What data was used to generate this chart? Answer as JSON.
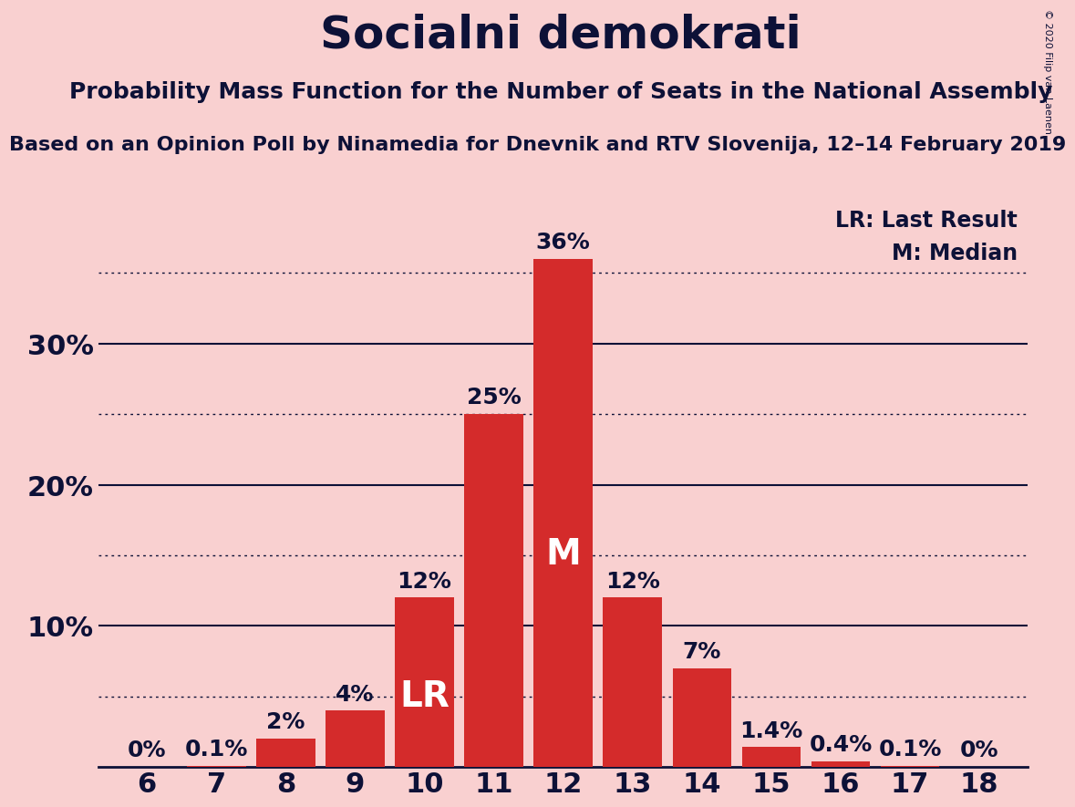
{
  "title": "Socialni demokrati",
  "subtitle": "Probability Mass Function for the Number of Seats in the National Assembly",
  "source": "Based on an Opinion Poll by Ninamedia for Dnevnik and RTV Slovenija, 12–14 February 2019",
  "copyright": "© 2020 Filip van Laenen",
  "seats": [
    6,
    7,
    8,
    9,
    10,
    11,
    12,
    13,
    14,
    15,
    16,
    17,
    18
  ],
  "probabilities": [
    0.0,
    0.1,
    2.0,
    4.0,
    12.0,
    25.0,
    36.0,
    12.0,
    7.0,
    1.4,
    0.4,
    0.1,
    0.0
  ],
  "bar_labels": [
    "0%",
    "0.1%",
    "2%",
    "4%",
    "12%",
    "25%",
    "36%",
    "12%",
    "7%",
    "1.4%",
    "0.4%",
    "0.1%",
    "0%"
  ],
  "bar_color": "#d42b2b",
  "background_color": "#f9d0d0",
  "median_seat": 12,
  "last_result_seat": 10,
  "lr_label": "LR",
  "median_label": "M",
  "legend_lr": "LR: Last Result",
  "legend_m": "M: Median",
  "solid_yticks": [
    10,
    20,
    30
  ],
  "dotted_yticks": [
    5,
    15,
    25,
    35
  ],
  "labeled_yticks": [
    10,
    20,
    30
  ],
  "ylim": [
    0,
    40
  ],
  "title_fontsize": 36,
  "subtitle_fontsize": 18,
  "source_fontsize": 16,
  "bar_label_fontsize": 18,
  "axis_label_fontsize": 22,
  "inside_label_fontsize": 28,
  "legend_fontsize": 17
}
